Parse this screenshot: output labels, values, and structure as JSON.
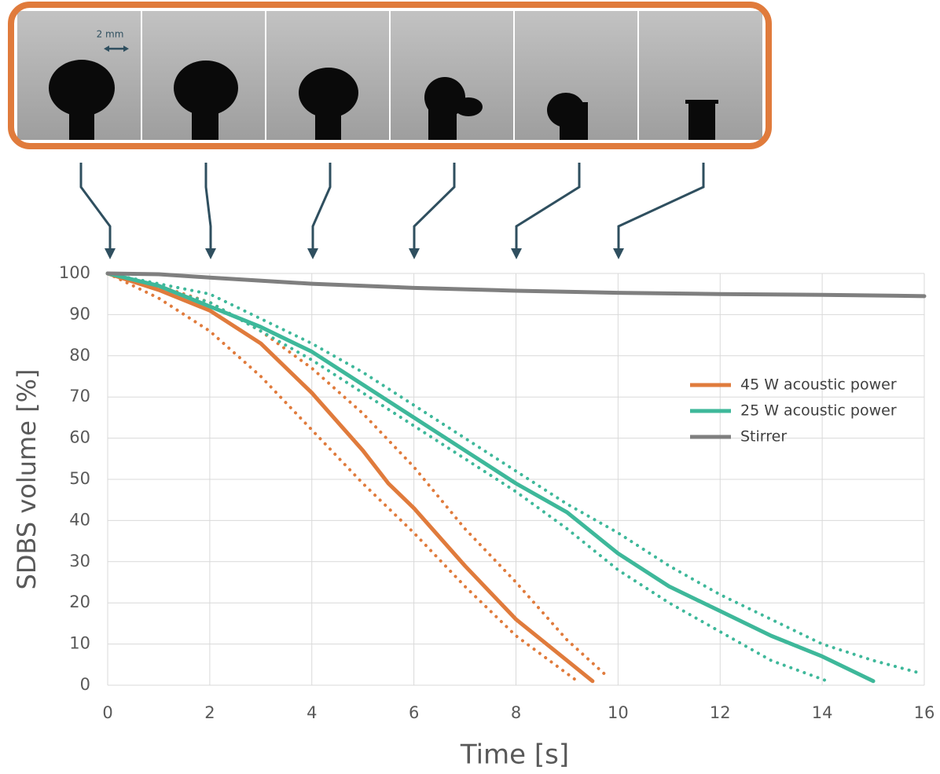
{
  "chart_data": {
    "type": "line",
    "image_scale_label": "2 mm",
    "xlabel": "Time [s]",
    "ylabel": "SDBS volume [%]",
    "xlim": [
      0,
      16
    ],
    "xticks": [
      0,
      2,
      4,
      6,
      8,
      10,
      12,
      14,
      16
    ],
    "ylim": [
      0,
      100
    ],
    "yticks": [
      0,
      10,
      20,
      30,
      40,
      50,
      60,
      70,
      80,
      90,
      100
    ],
    "grid": true,
    "legend": "right",
    "series": [
      {
        "name": "45 W acoustic power",
        "color": "#e07b3c",
        "x": [
          0,
          1,
          2,
          3,
          4,
          5,
          5.5,
          6,
          7,
          8,
          9,
          9.5
        ],
        "values": [
          100,
          96,
          91,
          83,
          71,
          57,
          49,
          43,
          29,
          16,
          6,
          1
        ]
      },
      {
        "name": "25 W acoustic power",
        "color": "#3eb89a",
        "x": [
          0,
          1,
          2,
          3,
          4,
          5,
          6,
          7,
          8,
          9,
          10,
          11,
          12,
          13,
          14,
          15
        ],
        "values": [
          100,
          97,
          92,
          87,
          81,
          73,
          65,
          57,
          49,
          42,
          32,
          24,
          18,
          12,
          7,
          1
        ]
      },
      {
        "name": "Stirrer",
        "color": "#7f7f7f",
        "x": [
          0,
          1,
          2,
          4,
          6,
          8,
          10,
          12,
          14,
          16
        ],
        "values": [
          100,
          99.8,
          99,
          97.5,
          96.5,
          95.8,
          95.3,
          95,
          94.8,
          94.5
        ]
      },
      {
        "color": "#e07b3c",
        "dotted": true,
        "x": [
          0,
          1,
          2,
          3,
          4,
          5,
          6,
          7,
          8,
          9,
          9.8
        ],
        "values": [
          100,
          97,
          93,
          86,
          77,
          66,
          53,
          38,
          25,
          11,
          2
        ]
      },
      {
        "color": "#e07b3c",
        "dotted": true,
        "x": [
          0,
          1,
          2,
          3,
          4,
          5,
          6,
          7,
          8,
          9.2
        ],
        "values": [
          100,
          94,
          86,
          75,
          62,
          49,
          37,
          24,
          12,
          1
        ]
      },
      {
        "color": "#3eb89a",
        "dotted": true,
        "x": [
          0,
          2,
          3,
          4,
          5,
          6,
          7,
          8,
          9,
          10,
          11,
          12,
          13,
          14,
          15,
          15.9
        ],
        "values": [
          100,
          95,
          89,
          83,
          76,
          68,
          60,
          52,
          44,
          37,
          29,
          22,
          16,
          10,
          6,
          3
        ]
      },
      {
        "color": "#3eb89a",
        "dotted": true,
        "x": [
          0,
          2,
          4,
          6,
          8,
          9,
          10,
          11,
          12,
          13,
          14.1
        ],
        "values": [
          100,
          93,
          79,
          63,
          47,
          38,
          28,
          20,
          13,
          6,
          1
        ]
      }
    ]
  }
}
